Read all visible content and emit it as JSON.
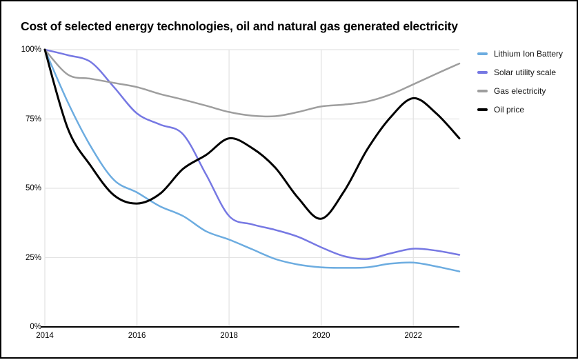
{
  "title": "Cost of selected energy technologies, oil and natural gas generated electricity",
  "chart_data": {
    "type": "line",
    "title": "Cost of selected energy technologies, oil and natural gas generated electricity",
    "xlabel": "",
    "ylabel": "",
    "xlim": [
      2014,
      2023
    ],
    "ylim": [
      0,
      100
    ],
    "grid": true,
    "grid_color": "#E3E3E3",
    "axis_color": "#000000",
    "background": "#FFFFFF",
    "legend_position": "right",
    "smooth": true,
    "x": [
      2014,
      2014.5,
      2015,
      2015.5,
      2016,
      2016.5,
      2017,
      2017.5,
      2018,
      2018.5,
      2019,
      2019.5,
      2020,
      2020.5,
      2021,
      2021.5,
      2022,
      2022.5,
      2023
    ],
    "series": [
      {
        "name": "Lithium Ion Battery",
        "color": "#6CACE0",
        "stroke_width": 2.5,
        "values": [
          100,
          81,
          65,
          53,
          48.5,
          43.5,
          40,
          34.5,
          31.5,
          28,
          24.5,
          22.5,
          21.5,
          21.3,
          21.5,
          22.8,
          23.2,
          21.8,
          20
        ]
      },
      {
        "name": "Solar utility scale",
        "color": "#7678E3",
        "stroke_width": 2.5,
        "values": [
          100,
          98,
          95.5,
          86.5,
          77,
          73,
          69.5,
          55,
          40,
          37,
          35,
          32.5,
          28.7,
          25.5,
          24.5,
          26.5,
          28.2,
          27.5,
          26
        ]
      },
      {
        "name": "Gas electricity",
        "color": "#9E9E9E",
        "stroke_width": 2.5,
        "values": [
          100,
          91,
          89.5,
          88,
          86.5,
          84,
          82,
          79.8,
          77.5,
          76.2,
          76,
          77.5,
          79.5,
          80.2,
          81.3,
          83.8,
          87.5,
          91.3,
          95
        ]
      },
      {
        "name": "Oil price",
        "color": "#000000",
        "stroke_width": 3,
        "values": [
          100,
          71.5,
          58,
          47.5,
          44.5,
          48,
          57,
          62,
          68,
          64.5,
          57.5,
          46.5,
          39,
          49,
          64,
          75.5,
          82.5,
          77,
          68
        ]
      }
    ],
    "y_ticks": [
      {
        "label": "100%",
        "value": 100
      },
      {
        "label": "75%",
        "value": 75
      },
      {
        "label": "50%",
        "value": 50
      },
      {
        "label": "25%",
        "value": 25
      },
      {
        "label": "0%",
        "value": 0
      }
    ],
    "x_ticks": [
      {
        "label": "2014",
        "value": 2014
      },
      {
        "label": "2016",
        "value": 2016
      },
      {
        "label": "2018",
        "value": 2018
      },
      {
        "label": "2020",
        "value": 2020
      },
      {
        "label": "2022",
        "value": 2022
      }
    ]
  }
}
